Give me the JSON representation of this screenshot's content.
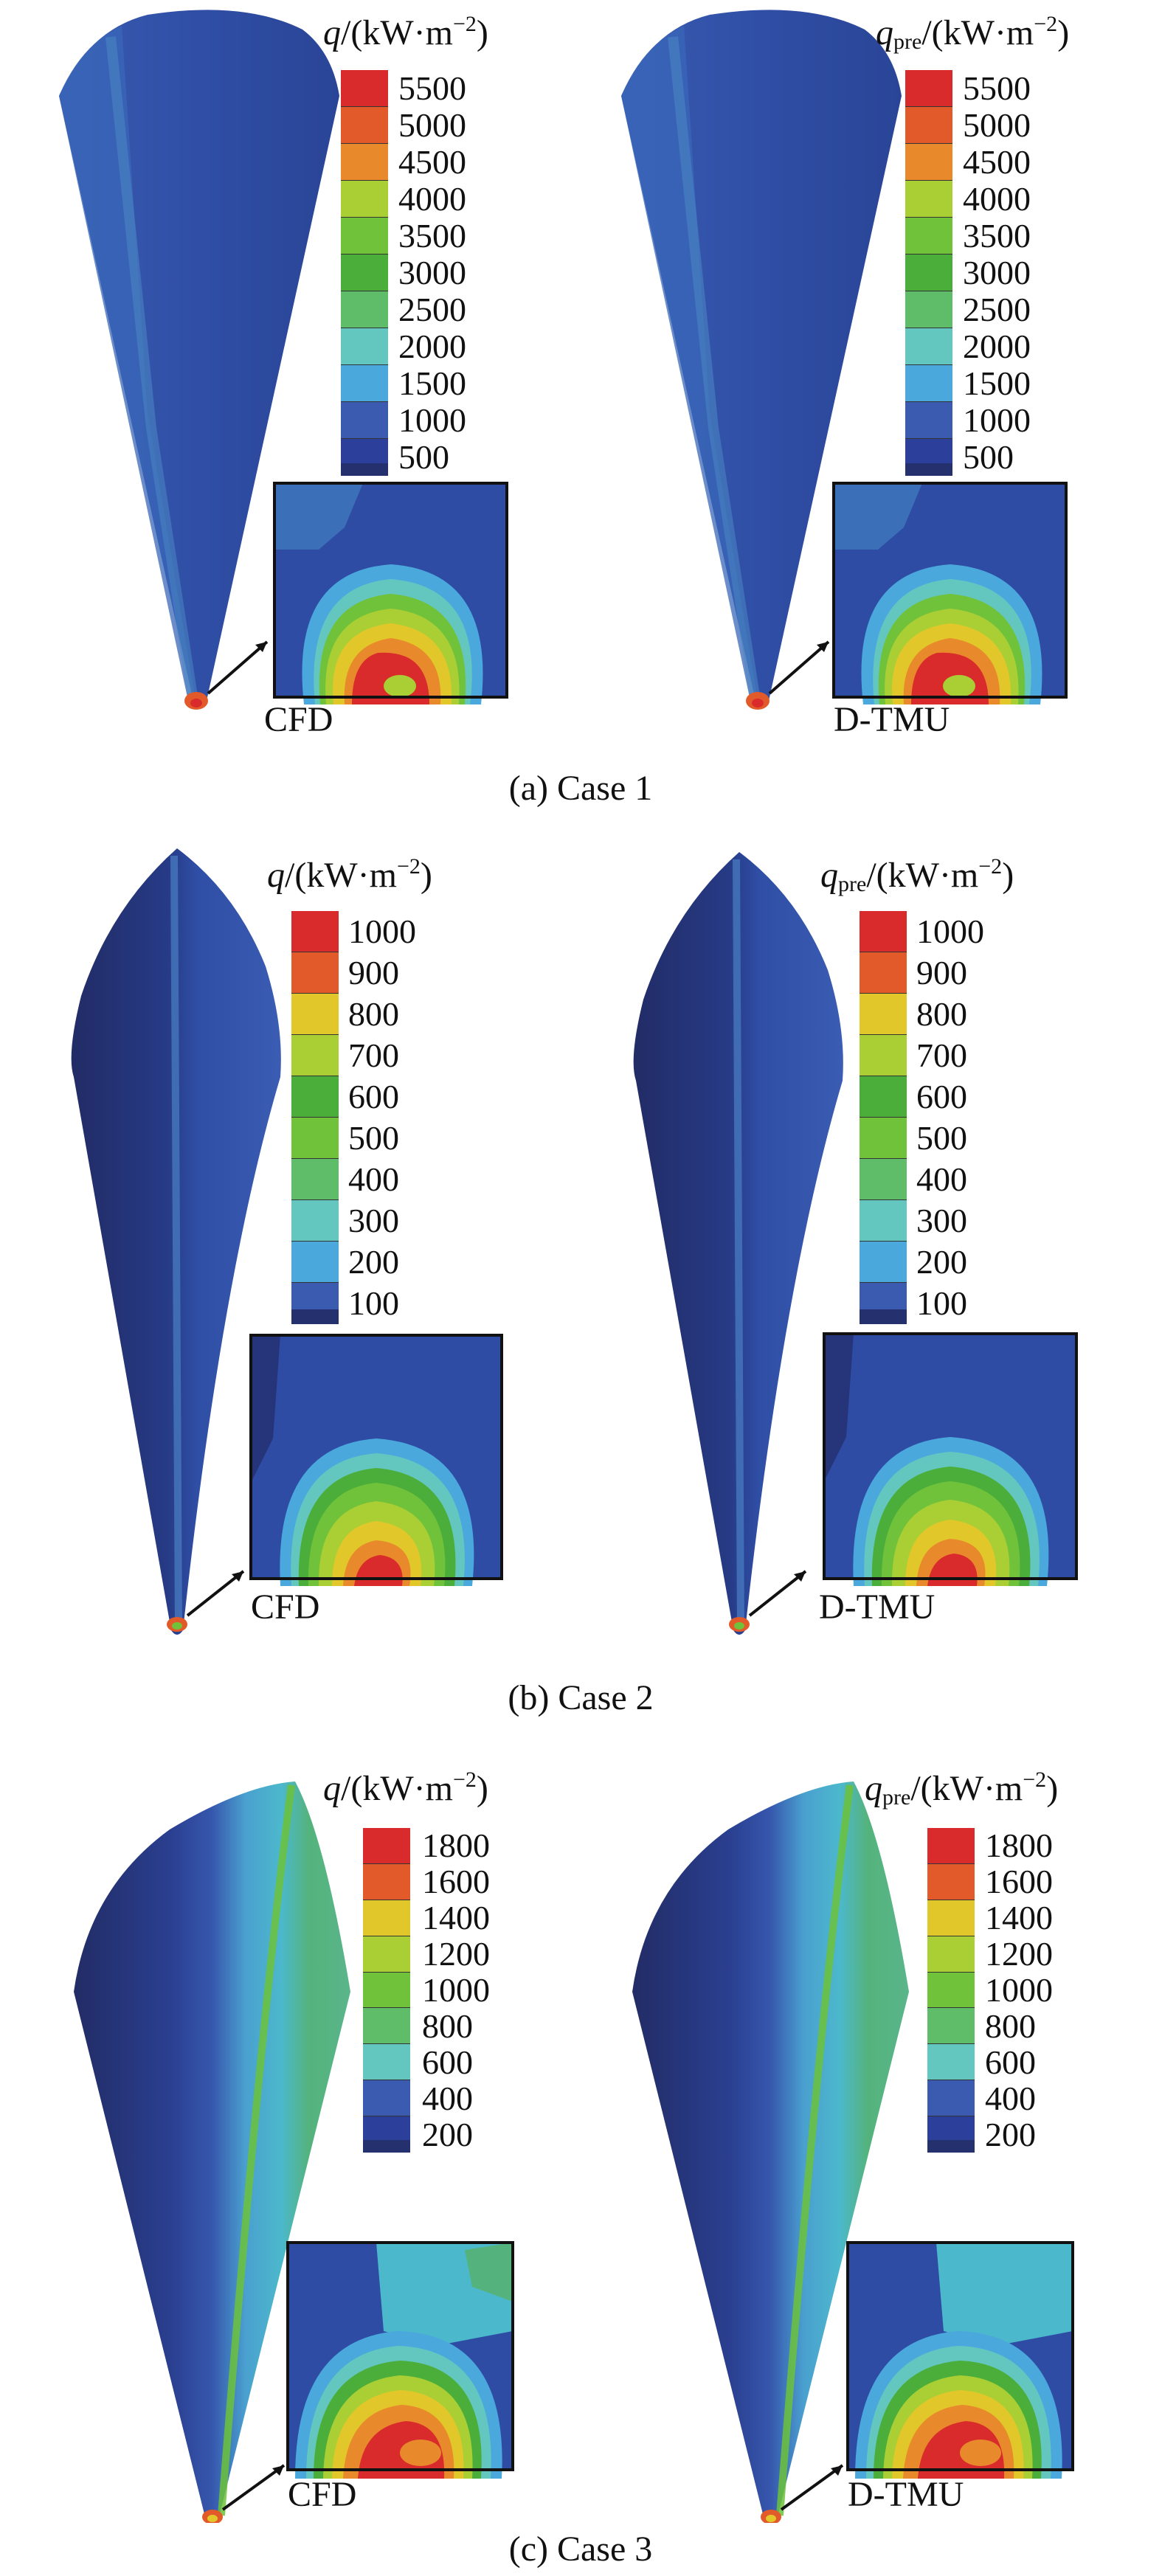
{
  "colors": {
    "c0": "#2c3f9a",
    "c1": "#3a5bb0",
    "c2": "#4aa8dd",
    "c3": "#63c7c0",
    "c4": "#5fbd6a",
    "c5": "#4cae3a",
    "c6": "#70c23a",
    "c7": "#a9cf35",
    "c8": "#e2c72a",
    "c9": "#e88a2b",
    "c10": "#e25a2a",
    "c11": "#d92b2b",
    "body_dark": "#25306e",
    "body_mid": "#2f4ea5",
    "body_light": "#3f66bd",
    "stripe_light": "#4a92c8",
    "stripe_cyan": "#4cb8cc",
    "stripe_green": "#54b37c"
  },
  "figure": {
    "case1": {
      "caption": "(a) Case 1",
      "left": {
        "label": "CFD",
        "title_symbol": "q",
        "title_sub": "",
        "title_units_pre": "/(kW·m",
        "title_exp": "−2",
        "title_units_post": ")",
        "ticks": [
          "5500",
          "5000",
          "4500",
          "4000",
          "3500",
          "3000",
          "2500",
          "2000",
          "1500",
          "1000",
          "500"
        ]
      },
      "right": {
        "label": "D-TMU",
        "title_symbol": "q",
        "title_sub": "pre",
        "title_units_pre": "/(kW·m",
        "title_exp": "−2",
        "title_units_post": ")",
        "ticks": [
          "5500",
          "5000",
          "4500",
          "4000",
          "3500",
          "3000",
          "2500",
          "2000",
          "1500",
          "1000",
          "500"
        ]
      }
    },
    "case2": {
      "caption": "(b) Case 2",
      "left": {
        "label": "CFD",
        "title_symbol": "q",
        "title_sub": "",
        "title_units_pre": "/(kW·m",
        "title_exp": "−2",
        "title_units_post": ")",
        "ticks": [
          "1000",
          "900",
          "800",
          "700",
          "600",
          "500",
          "400",
          "300",
          "200",
          "100"
        ]
      },
      "right": {
        "label": "D-TMU",
        "title_symbol": "q",
        "title_sub": "pre",
        "title_units_pre": "/(kW·m",
        "title_exp": "−2",
        "title_units_post": ")",
        "ticks": [
          "1000",
          "900",
          "800",
          "700",
          "600",
          "500",
          "400",
          "300",
          "200",
          "100"
        ]
      }
    },
    "case3": {
      "caption": "(c) Case 3",
      "left": {
        "label": "CFD",
        "title_symbol": "q",
        "title_sub": "",
        "title_units_pre": "/(kW·m",
        "title_exp": "−2",
        "title_units_post": ")",
        "ticks": [
          "1800",
          "1600",
          "1400",
          "1200",
          "1000",
          "800",
          "600",
          "400",
          "200"
        ]
      },
      "right": {
        "label": "D-TMU",
        "title_symbol": "q",
        "title_sub": "pre",
        "title_units_pre": "/(kW·m",
        "title_exp": "−2",
        "title_units_post": ")",
        "ticks": [
          "1800",
          "1600",
          "1400",
          "1200",
          "1000",
          "800",
          "600",
          "400",
          "200"
        ]
      }
    }
  }
}
